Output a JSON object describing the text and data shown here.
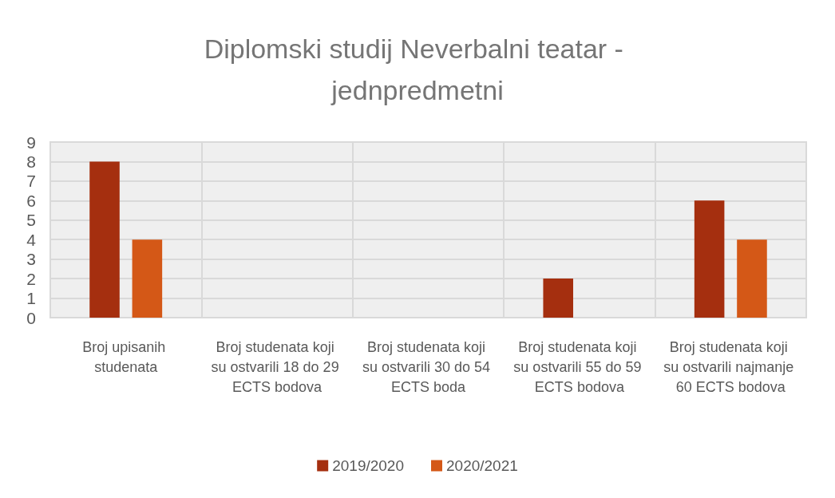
{
  "chart_data": {
    "type": "bar",
    "title": "Diplomski studij Neverbalni teatar - jednpredmetni",
    "categories": [
      "Broj upisanih studenata",
      "Broj studenata koji su ostvarili 18 do 29 ECTS bodova",
      "Broj studenata koji su ostvarili 30 do 54 ECTS boda",
      "Broj studenata koji su ostvarili 55 do 59 ECTS bodova",
      "Broj studenata koji su ostvarili najmanje 60 ECTS bodova"
    ],
    "series": [
      {
        "name": "2019/2020",
        "color": "#a52f0f",
        "values": [
          8,
          0,
          0,
          2,
          6
        ]
      },
      {
        "name": "2020/2021",
        "color": "#d45817",
        "values": [
          4,
          0,
          0,
          0,
          4
        ]
      }
    ],
    "ylim": [
      0,
      9
    ],
    "yticks": [
      0,
      1,
      2,
      3,
      4,
      5,
      6,
      7,
      8,
      9
    ],
    "grid": true,
    "legend": "bottom"
  }
}
